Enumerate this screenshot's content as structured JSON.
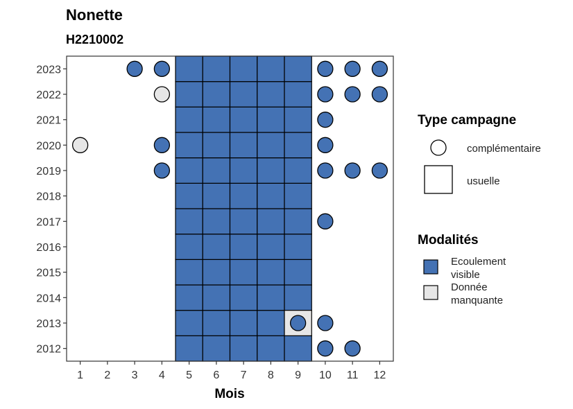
{
  "chart_data": {
    "type": "heatmap",
    "title": "Nonette",
    "subtitle": "H2210002",
    "xlabel": "Mois",
    "ylabel": "",
    "x_ticks": [
      1,
      2,
      3,
      4,
      5,
      6,
      7,
      8,
      9,
      10,
      11,
      12
    ],
    "y_ticks": [
      2012,
      2013,
      2014,
      2015,
      2016,
      2017,
      2018,
      2019,
      2020,
      2021,
      2022,
      2023
    ],
    "xlim": [
      0.5,
      12.5
    ],
    "ylim": [
      2011.5,
      2023.5
    ],
    "colors": {
      "Ecoulement visible": "#4472b4",
      "Donnée manquante": "#e6e6e6"
    },
    "legend_shape": {
      "title": "Type campagne",
      "items": [
        {
          "label": "complémentaire",
          "shape": "circle"
        },
        {
          "label": "usuelle",
          "shape": "square"
        }
      ]
    },
    "legend_fill": {
      "title": "Modalités",
      "items": [
        {
          "label_lines": [
            "Ecoulement",
            "visible"
          ],
          "key": "Ecoulement visible"
        },
        {
          "label_lines": [
            "Donnée",
            "manquante"
          ],
          "key": "Donnée manquante"
        }
      ]
    },
    "usuelle": [
      {
        "years": [
          2012,
          2023
        ],
        "months": [
          5,
          6,
          7,
          8
        ],
        "modalite": "Ecoulement visible"
      },
      {
        "years": [
          2014,
          2023
        ],
        "months": [
          9
        ],
        "modalite": "Ecoulement visible"
      },
      {
        "years": [
          2012,
          2012
        ],
        "months": [
          9
        ],
        "modalite": "Ecoulement visible"
      },
      {
        "years": [
          2013,
          2013
        ],
        "months": [
          9
        ],
        "modalite": "Donnée manquante"
      }
    ],
    "complementaire": [
      {
        "month": 3,
        "year": 2023,
        "modalite": "Ecoulement visible"
      },
      {
        "month": 4,
        "year": 2023,
        "modalite": "Ecoulement visible"
      },
      {
        "month": 10,
        "year": 2023,
        "modalite": "Ecoulement visible"
      },
      {
        "month": 11,
        "year": 2023,
        "modalite": "Ecoulement visible"
      },
      {
        "month": 12,
        "year": 2023,
        "modalite": "Ecoulement visible"
      },
      {
        "month": 4,
        "year": 2022,
        "modalite": "Donnée manquante"
      },
      {
        "month": 10,
        "year": 2022,
        "modalite": "Ecoulement visible"
      },
      {
        "month": 11,
        "year": 2022,
        "modalite": "Ecoulement visible"
      },
      {
        "month": 12,
        "year": 2022,
        "modalite": "Ecoulement visible"
      },
      {
        "month": 10,
        "year": 2021,
        "modalite": "Ecoulement visible"
      },
      {
        "month": 1,
        "year": 2020,
        "modalite": "Donnée manquante"
      },
      {
        "month": 4,
        "year": 2020,
        "modalite": "Ecoulement visible"
      },
      {
        "month": 10,
        "year": 2020,
        "modalite": "Ecoulement visible"
      },
      {
        "month": 4,
        "year": 2019,
        "modalite": "Ecoulement visible"
      },
      {
        "month": 10,
        "year": 2019,
        "modalite": "Ecoulement visible"
      },
      {
        "month": 11,
        "year": 2019,
        "modalite": "Ecoulement visible"
      },
      {
        "month": 12,
        "year": 2019,
        "modalite": "Ecoulement visible"
      },
      {
        "month": 10,
        "year": 2017,
        "modalite": "Ecoulement visible"
      },
      {
        "month": 9,
        "year": 2013,
        "modalite": "Ecoulement visible"
      },
      {
        "month": 10,
        "year": 2013,
        "modalite": "Ecoulement visible"
      },
      {
        "month": 10,
        "year": 2012,
        "modalite": "Ecoulement visible"
      },
      {
        "month": 11,
        "year": 2012,
        "modalite": "Ecoulement visible"
      }
    ]
  }
}
